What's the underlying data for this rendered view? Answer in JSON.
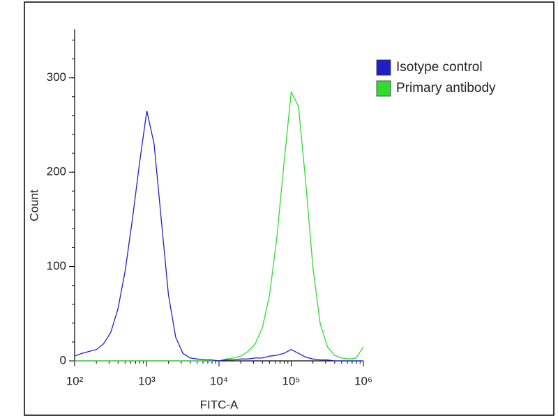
{
  "chart_data": {
    "type": "line",
    "x_label": "FITC-A",
    "y_label": "Count",
    "log_x": true,
    "legend": "top-right",
    "x": [
      100,
      126,
      158,
      200,
      251,
      316,
      398,
      501,
      631,
      794,
      1000,
      1259,
      1585,
      1995,
      2512,
      3162,
      3981,
      5012,
      6310,
      7943,
      10000,
      12589,
      15849,
      19953,
      25119,
      31623,
      39811,
      50119,
      63096,
      79433,
      100000,
      125893,
      158489,
      199526,
      251189,
      316228,
      398107,
      501187,
      630957,
      794328,
      1000000
    ],
    "series": [
      {
        "name": "Isotype control",
        "color": "#1f1fc8",
        "values": [
          5,
          8,
          10,
          12,
          18,
          30,
          55,
          95,
          150,
          210,
          265,
          230,
          150,
          70,
          25,
          8,
          3,
          2,
          1,
          1,
          0,
          1,
          1,
          2,
          2,
          3,
          3,
          5,
          6,
          8,
          12,
          8,
          4,
          2,
          1,
          1,
          0,
          0,
          0,
          0,
          0
        ]
      },
      {
        "name": "Primary antibody",
        "color": "#2fdc2f",
        "values": [
          0,
          0,
          0,
          0,
          0,
          0,
          0,
          0,
          0,
          0,
          0,
          0,
          0,
          0,
          0,
          0,
          0,
          0,
          0,
          0,
          0,
          2,
          3,
          5,
          10,
          18,
          35,
          70,
          130,
          210,
          285,
          270,
          190,
          100,
          40,
          15,
          6,
          3,
          2,
          3,
          15
        ]
      }
    ],
    "xlim": [
      100,
      1000000
    ],
    "xticks": [
      {
        "value": 100,
        "label": "10²"
      },
      {
        "value": 1000,
        "label": "10³"
      },
      {
        "value": 10000,
        "label": "10⁴"
      },
      {
        "value": 100000,
        "label": "10⁵"
      },
      {
        "value": 1000000,
        "label": "10⁶"
      }
    ],
    "ylim": [
      0,
      350
    ],
    "yticks": [
      0,
      100,
      200,
      300
    ]
  }
}
